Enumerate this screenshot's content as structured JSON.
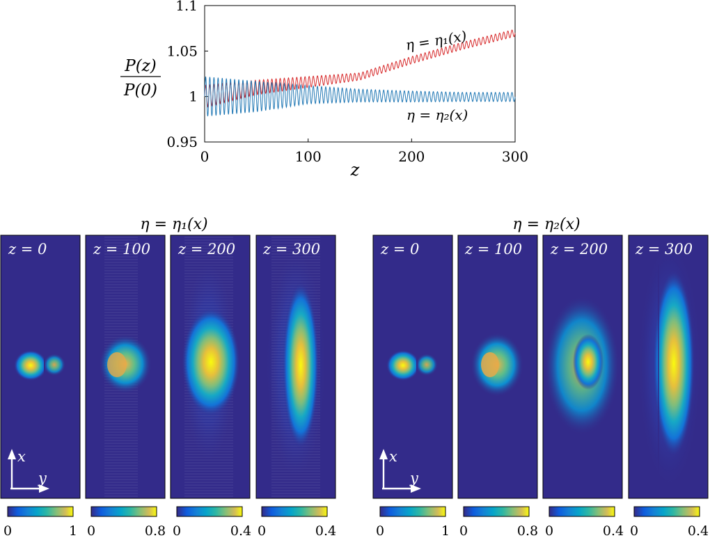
{
  "chart_data": [
    {
      "type": "line",
      "title": "",
      "xlabel": "z",
      "ylabel_num": "P(z)",
      "ylabel_den": "P(0)",
      "xlim": [
        0,
        300
      ],
      "ylim": [
        0.95,
        1.1
      ],
      "xticks": [
        "0",
        "100",
        "200",
        "300"
      ],
      "yticks": [
        "0.95",
        "1",
        "1.05",
        "1.1"
      ],
      "series": [
        {
          "name": "η = η₁(x)",
          "label": "η = η₁(x)",
          "color": "#d62728",
          "x": [
            0,
            50,
            100,
            150,
            200,
            250,
            300
          ],
          "trend": [
            1.0,
            1.01,
            1.016,
            1.022,
            1.04,
            1.056,
            1.07
          ],
          "osc_amplitude": [
            0.012,
            0.008,
            0.006,
            0.004,
            0.004,
            0.004,
            0.004
          ],
          "osc_period": 4
        },
        {
          "name": "η = η₂(x)",
          "label": "η = η₂(x)",
          "color": "#1f77b4",
          "x": [
            0,
            50,
            100,
            150,
            200,
            250,
            300
          ],
          "trend": [
            1.0,
            1.0,
            1.002,
            1.001,
            1.0,
            0.9995,
            0.9995
          ],
          "osc_amplitude": [
            0.022,
            0.017,
            0.01,
            0.007,
            0.006,
            0.005,
            0.005
          ],
          "osc_period": 4
        }
      ]
    },
    {
      "type": "heatmap",
      "title": "η = η₁(x)",
      "panels": [
        {
          "label": "z = 0",
          "colorbar": [
            "0",
            "1"
          ]
        },
        {
          "label": "z = 100",
          "colorbar": [
            "0",
            "0.8"
          ]
        },
        {
          "label": "z = 200",
          "colorbar": [
            "0",
            "0.4"
          ]
        },
        {
          "label": "z = 300",
          "colorbar": [
            "0",
            "0.4"
          ]
        }
      ],
      "axes_labels": [
        "x",
        "y"
      ]
    },
    {
      "type": "heatmap",
      "title": "η = η₂(x)",
      "panels": [
        {
          "label": "z = 0",
          "colorbar": [
            "0",
            "1"
          ]
        },
        {
          "label": "z = 100",
          "colorbar": [
            "0",
            "0.8"
          ]
        },
        {
          "label": "z = 200",
          "colorbar": [
            "0",
            "0.4"
          ]
        },
        {
          "label": "z = 300",
          "colorbar": [
            "0",
            "0.4"
          ]
        }
      ],
      "axes_labels": [
        "x",
        "y"
      ]
    }
  ],
  "colors": {
    "background": "#332b8a",
    "line1": "#d62728",
    "line2": "#1f77b4"
  }
}
